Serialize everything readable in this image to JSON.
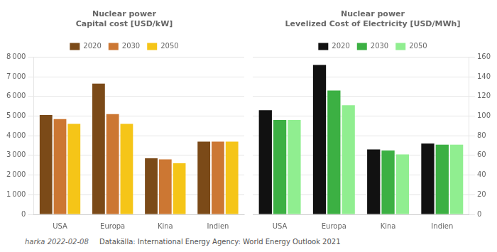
{
  "chart_data": [
    {
      "type": "bar",
      "title": "Nuclear power\nCapital cost [USD/kW]",
      "categories": [
        "USA",
        "Europa",
        "Kina",
        "Indien"
      ],
      "series": [
        {
          "name": "2020",
          "color": "#7B4A18",
          "values": [
            5050,
            6650,
            2850,
            3700
          ]
        },
        {
          "name": "2030",
          "color": "#CC7733",
          "values": [
            4850,
            5100,
            2800,
            3700
          ]
        },
        {
          "name": "2050",
          "color": "#F5C518",
          "values": [
            4600,
            4600,
            2600,
            3700
          ]
        }
      ],
      "ylim": [
        0,
        8000
      ],
      "yticks": [
        0,
        {
          "value": 1000,
          "label": "1 000"
        },
        {
          "value": 2000,
          "label": "2 000"
        },
        {
          "value": 3000,
          "label": "3 000"
        },
        {
          "value": 4000,
          "label": "4 000"
        },
        {
          "value": 5000,
          "label": "5 000"
        },
        {
          "value": 6000,
          "label": "6 000"
        },
        {
          "value": 7000,
          "label": "7 000"
        },
        {
          "value": 8000,
          "label": "8 000"
        }
      ],
      "grid": true,
      "legend": "top",
      "annotations": [
        "harka 2022-02-08",
        "Datakälla: International Energy Agency: World Energy Outlook 2021"
      ]
    },
    {
      "type": "bar",
      "title": "Nuclear power\nLevelized Cost of Electricity [USD/MWh]",
      "categories": [
        "USA",
        "Europa",
        "Kina",
        "Indien"
      ],
      "series": [
        {
          "name": "2020",
          "color": "#111111",
          "values": [
            106,
            152,
            66,
            72
          ],
          "axis": "y2"
        },
        {
          "name": "2030",
          "color": "#3CB043",
          "values": [
            96,
            126,
            65,
            71
          ],
          "axis": "y2"
        },
        {
          "name": "2050",
          "color": "#90EE90",
          "values": [
            96,
            111,
            61,
            71
          ],
          "axis": "y2"
        }
      ],
      "y2lim": [
        0,
        160
      ],
      "y2ticks": [
        0,
        20,
        40,
        60,
        80,
        100,
        120,
        140,
        160
      ],
      "grid": true,
      "legend": "top"
    }
  ]
}
